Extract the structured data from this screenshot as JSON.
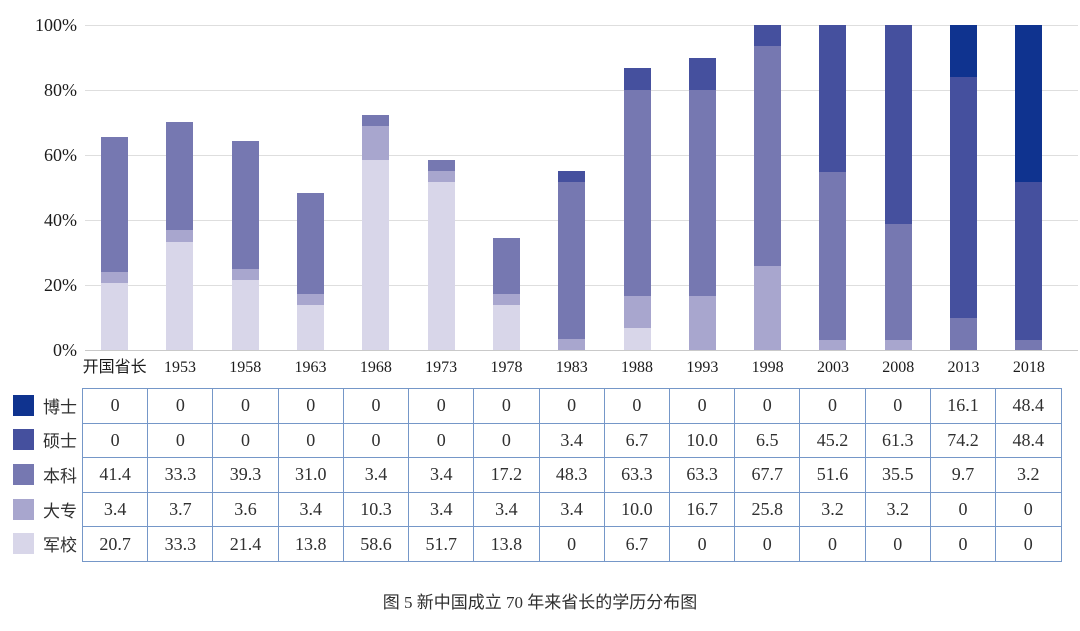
{
  "figure": {
    "caption": "图 5 新中国成立 70 年来省长的学历分布图"
  },
  "chart_data": {
    "type": "bar",
    "stacked": true,
    "unit": "%",
    "title": "",
    "xlabel": "",
    "ylabel": "",
    "ylim": [
      0,
      100
    ],
    "grid": true,
    "legend_position": "left-of-table",
    "y_ticks": [
      "0%",
      "20%",
      "40%",
      "60%",
      "80%",
      "100%"
    ],
    "categories": [
      "开国省长",
      "1953",
      "1958",
      "1963",
      "1968",
      "1973",
      "1978",
      "1983",
      "1988",
      "1993",
      "1998",
      "2003",
      "2008",
      "2013",
      "2018"
    ],
    "series": [
      {
        "id": "doctor",
        "name": "博士",
        "color": "#0f338f",
        "values": [
          "0",
          "0",
          "0",
          "0",
          "0",
          "0",
          "0",
          "0",
          "0",
          "0",
          "0",
          "0",
          "0",
          "16.1",
          "48.4"
        ]
      },
      {
        "id": "master",
        "name": "硕士",
        "color": "#45509e",
        "values": [
          "0",
          "0",
          "0",
          "0",
          "0",
          "0",
          "0",
          "3.4",
          "6.7",
          "10.0",
          "6.5",
          "45.2",
          "61.3",
          "74.2",
          "48.4"
        ]
      },
      {
        "id": "bachelor",
        "name": "本科",
        "color": "#7678b1",
        "values": [
          "41.4",
          "33.3",
          "39.3",
          "31.0",
          "3.4",
          "3.4",
          "17.2",
          "48.3",
          "63.3",
          "63.3",
          "67.7",
          "51.6",
          "35.5",
          "9.7",
          "3.2"
        ]
      },
      {
        "id": "junior-college",
        "name": "大专",
        "color": "#a8a6ce",
        "values": [
          "3.4",
          "3.7",
          "3.6",
          "3.4",
          "10.3",
          "3.4",
          "3.4",
          "3.4",
          "10.0",
          "16.7",
          "25.8",
          "3.2",
          "3.2",
          "0",
          "0"
        ]
      },
      {
        "id": "military-academy",
        "name": "军校",
        "color": "#d8d6e9",
        "values": [
          "20.7",
          "33.3",
          "21.4",
          "13.8",
          "58.6",
          "51.7",
          "13.8",
          "0",
          "6.7",
          "0",
          "0",
          "0",
          "0",
          "0",
          "0"
        ]
      }
    ],
    "stack_order_bottom_to_top": [
      "military-academy",
      "junior-college",
      "bachelor",
      "master",
      "doctor"
    ],
    "colors": {
      "gridline": "#dedede",
      "axis_line": "#c9c9c9",
      "table_border": "#7597c8"
    }
  }
}
